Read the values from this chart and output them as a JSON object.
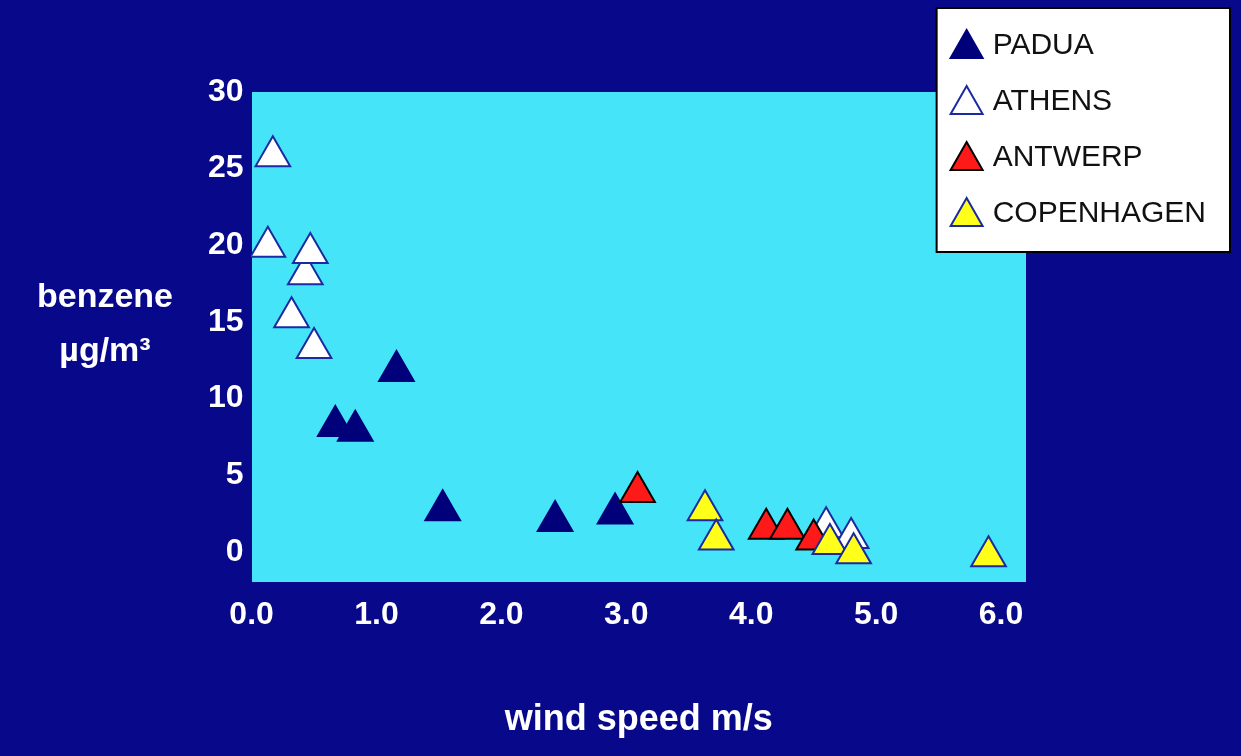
{
  "chart_data": {
    "type": "scatter",
    "xlabel": "wind speed m/s",
    "ylabel": "benzene µg/m³",
    "xlim": [
      0,
      6.2
    ],
    "ylim": [
      -2,
      30
    ],
    "xticks": [
      {
        "value": 0,
        "label": "0.0"
      },
      {
        "value": 1,
        "label": "1.0"
      },
      {
        "value": 2,
        "label": "2.0"
      },
      {
        "value": 3,
        "label": "3.0"
      },
      {
        "value": 4,
        "label": "4.0"
      },
      {
        "value": 5,
        "label": "5.0"
      },
      {
        "value": 6,
        "label": "6.0"
      }
    ],
    "yticks": [
      0,
      5,
      10,
      15,
      20,
      25,
      30
    ],
    "grid": false,
    "legend": "top right",
    "marker": "triangle",
    "series": [
      {
        "name": "PADUA",
        "color": "#00007a",
        "x": [
          1.16,
          0.67,
          0.83,
          1.53,
          2.43,
          2.91
        ],
        "values": [
          11.8,
          8.2,
          7.9,
          2.7,
          2.0,
          2.5
        ]
      },
      {
        "name": "ATHENS",
        "color": "#ffffff",
        "x": [
          0.17,
          0.13,
          0.43,
          0.47,
          0.32,
          0.5,
          4.6,
          4.8
        ],
        "values": [
          25.8,
          19.9,
          18.1,
          19.5,
          15.3,
          13.3,
          1.6,
          0.9
        ]
      },
      {
        "name": "ANTWERP",
        "color": "#ff1a1a",
        "x": [
          3.09,
          4.12,
          4.29,
          4.5
        ],
        "values": [
          3.9,
          1.5,
          1.5,
          0.8
        ]
      },
      {
        "name": "COPENHAGEN",
        "color": "#ffff1a",
        "x": [
          3.63,
          3.72,
          4.63,
          4.82,
          5.9
        ],
        "values": [
          2.7,
          0.8,
          0.5,
          -0.1,
          -0.3
        ]
      }
    ]
  }
}
